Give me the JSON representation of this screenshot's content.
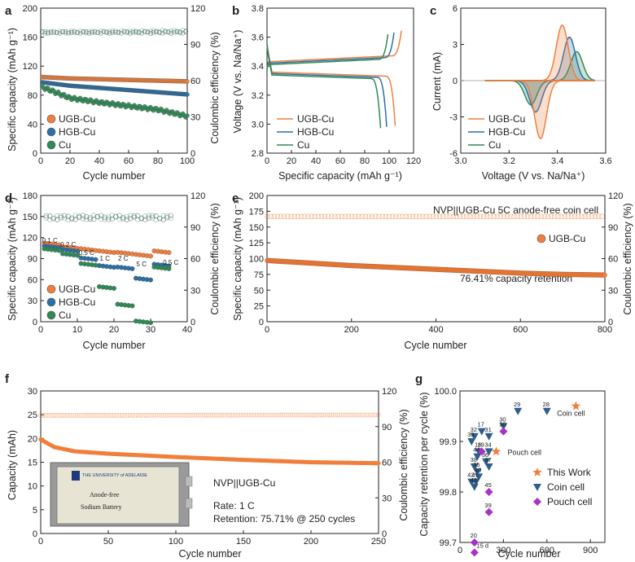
{
  "panels": {
    "a": {
      "label": "a",
      "ylabel": "Specific capacity (mAh g⁻¹)",
      "y2label": "Coulombic efficiency (%)",
      "xlabel": "Cycle number"
    },
    "b": {
      "label": "b",
      "ylabel": "Voltage (V vs. Na/Na⁺)",
      "xlabel": "Specific capacity (mAh g⁻¹)"
    },
    "c": {
      "label": "c",
      "ylabel": "Current (mA)",
      "xlabel": "Voltage (V vs. Na/Na⁺)"
    },
    "d": {
      "label": "d",
      "ylabel": "Specific capacity (mAh g⁻¹)",
      "y2label": "Coulombic efficiency (%)",
      "xlabel": "Cycle number"
    },
    "e": {
      "label": "e",
      "ylabel": "Specific capacity (mAh g⁻¹)",
      "y2label": "Coulombic efficiency (%)",
      "xlabel": "Cycle number",
      "title": "NVP||UGB-Cu 5C anode-free coin cell",
      "annotation": "76.41%  capacity retention"
    },
    "f": {
      "label": "f",
      "ylabel": "Capacity (mAh)",
      "y2label": "Coulombic efficiency (%)",
      "xlabel": "Cycle number",
      "cell": "NVP||UGB-Cu",
      "rate": "Rate: 1 C",
      "retention": "Retention: 75.71% @ 250 cycles",
      "photo_text": "Anode-free\nSodium Battery",
      "photo_logo": "THE UNIVERSITY of ADELAIDE"
    },
    "g": {
      "label": "g",
      "ylabel": "Capacity retention per cycle (%)",
      "xlabel": "Cycle number",
      "coin_cell_label": "Coin cell",
      "pouch_cell_label": "Pouch cell",
      "days_label": "15 d"
    }
  },
  "colors": {
    "UGB-Cu": "#f07f3c",
    "HGB-Cu": "#2c6fa3",
    "Cu": "#2f8a55",
    "this_work": "#f07f3c",
    "coin": "#2e5e8a",
    "pouch": "#a832c9"
  },
  "chart_data": [
    {
      "panel": "a",
      "type": "scatter",
      "xlim": [
        0,
        100
      ],
      "ylim": [
        0,
        200
      ],
      "y2lim": [
        0,
        120
      ],
      "xticks": [
        0,
        20,
        40,
        60,
        80,
        100
      ],
      "yticks": [
        0,
        40,
        80,
        120,
        160,
        200
      ],
      "y2ticks": [
        0,
        30,
        60,
        90,
        120
      ],
      "series": [
        {
          "name": "UGB-Cu",
          "capacity": [
            [
              0,
              105
            ],
            [
              20,
              103
            ],
            [
              40,
              102
            ],
            [
              60,
              101
            ],
            [
              80,
              100
            ],
            [
              100,
              99
            ]
          ],
          "ce": [
            [
              0,
              100
            ],
            [
              100,
              100
            ]
          ]
        },
        {
          "name": "HGB-Cu",
          "capacity": [
            [
              0,
              98
            ],
            [
              20,
              93
            ],
            [
              40,
              90
            ],
            [
              60,
              87
            ],
            [
              80,
              84
            ],
            [
              100,
              81
            ]
          ],
          "ce": [
            [
              0,
              100
            ],
            [
              100,
              100
            ]
          ]
        },
        {
          "name": "Cu",
          "capacity": [
            [
              0,
              92
            ],
            [
              20,
              76
            ],
            [
              40,
              70
            ],
            [
              60,
              65
            ],
            [
              80,
              60
            ],
            [
              100,
              51
            ]
          ],
          "ce": [
            [
              0,
              100
            ],
            [
              100,
              101
            ]
          ]
        }
      ]
    },
    {
      "panel": "b",
      "type": "line",
      "xlim": [
        0,
        120
      ],
      "ylim": [
        2.8,
        3.8
      ],
      "xticks": [
        0,
        20,
        40,
        60,
        80,
        100,
        120
      ],
      "yticks": [
        2.8,
        3.0,
        3.2,
        3.4,
        3.6,
        3.8
      ],
      "series": [
        {
          "name": "UGB-Cu",
          "charge_end": 110,
          "discharge_end": 105,
          "charge_plateau": 3.43,
          "discharge_plateau": 3.36
        },
        {
          "name": "HGB-Cu",
          "charge_end": 104,
          "discharge_end": 98,
          "charge_plateau": 3.42,
          "discharge_plateau": 3.35
        },
        {
          "name": "Cu",
          "charge_end": 99,
          "discharge_end": 93,
          "charge_plateau": 3.41,
          "discharge_plateau": 3.34
        }
      ]
    },
    {
      "panel": "c",
      "type": "line",
      "xlim": [
        3.0,
        3.6
      ],
      "ylim": [
        -6,
        6
      ],
      "xticks": [
        3.0,
        3.2,
        3.4,
        3.6
      ],
      "yticks": [
        -6,
        -3,
        0,
        3,
        6
      ],
      "series": [
        {
          "name": "UGB-Cu",
          "ox_peak": [
            3.42,
            4.6
          ],
          "red_peak": [
            3.33,
            -4.8
          ]
        },
        {
          "name": "HGB-Cu",
          "ox_peak": [
            3.45,
            3.6
          ],
          "red_peak": [
            3.31,
            -2.6
          ]
        },
        {
          "name": "Cu",
          "ox_peak": [
            3.48,
            2.4
          ],
          "red_peak": [
            3.29,
            -2.0
          ]
        }
      ]
    },
    {
      "panel": "d",
      "type": "scatter",
      "xlim": [
        0,
        40
      ],
      "ylim": [
        0,
        180
      ],
      "y2lim": [
        0,
        120
      ],
      "xticks": [
        0,
        10,
        20,
        30,
        40
      ],
      "yticks": [
        0,
        30,
        60,
        90,
        120,
        150,
        180
      ],
      "y2ticks": [
        0,
        30,
        60,
        90,
        120
      ],
      "rate_labels": [
        {
          "text": "0.1 C",
          "x": 1
        },
        {
          "text": "0.2 C",
          "x": 6
        },
        {
          "text": "0.5 C",
          "x": 11
        },
        {
          "text": "1 C",
          "x": 16
        },
        {
          "text": "2 C",
          "x": 21
        },
        {
          "text": "5 C",
          "x": 26
        },
        {
          "text": "0.5 C",
          "x": 34
        }
      ],
      "series": [
        {
          "name": "UGB-Cu",
          "steps": [
            112,
            107,
            104,
            101,
            99,
            96,
            101
          ]
        },
        {
          "name": "HGB-Cu",
          "steps": [
            108,
            103,
            91,
            80,
            78,
            62,
            82
          ]
        },
        {
          "name": "Cu",
          "steps": [
            104,
            97,
            83,
            50,
            25,
            1,
            78
          ]
        }
      ]
    },
    {
      "panel": "e",
      "type": "scatter",
      "xlim": [
        0,
        800
      ],
      "ylim": [
        0,
        200
      ],
      "y2lim": [
        0,
        120
      ],
      "xticks": [
        0,
        200,
        400,
        600,
        800
      ],
      "yticks": [
        0,
        25,
        50,
        75,
        100,
        125,
        150,
        175,
        200
      ],
      "y2ticks": [
        0,
        30,
        60,
        90,
        120
      ],
      "series": [
        {
          "name": "UGB-Cu",
          "capacity": [
            [
              0,
              97
            ],
            [
              100,
              93
            ],
            [
              200,
              89
            ],
            [
              300,
              86
            ],
            [
              400,
              83
            ],
            [
              500,
              80
            ],
            [
              600,
              77
            ],
            [
              700,
              75
            ],
            [
              800,
              74
            ]
          ],
          "ce": [
            [
              0,
              100
            ],
            [
              800,
              100
            ]
          ]
        }
      ]
    },
    {
      "panel": "f",
      "type": "line",
      "xlim": [
        0,
        250
      ],
      "ylim": [
        0,
        30
      ],
      "y2lim": [
        0,
        120
      ],
      "xticks": [
        0,
        50,
        100,
        150,
        200,
        250
      ],
      "yticks": [
        0,
        5,
        10,
        15,
        20,
        25,
        30
      ],
      "y2ticks": [
        0,
        30,
        60,
        90,
        120
      ],
      "series": [
        {
          "name": "NVP||UGB-Cu",
          "capacity": [
            [
              0,
              19.8
            ],
            [
              10,
              18.2
            ],
            [
              25,
              17.3
            ],
            [
              50,
              16.8
            ],
            [
              100,
              16.1
            ],
            [
              150,
              15.5
            ],
            [
              200,
              15.0
            ],
            [
              250,
              14.8
            ]
          ],
          "ce": [
            [
              0,
              99.5
            ],
            [
              250,
              99.8
            ]
          ]
        }
      ]
    },
    {
      "panel": "g",
      "type": "scatter",
      "xlim": [
        0,
        1000
      ],
      "ylim": [
        99.7,
        100.0
      ],
      "xticks": [
        0,
        300,
        600,
        900
      ],
      "yticks": [
        99.7,
        99.8,
        99.9,
        100.0
      ],
      "legend": [
        "This Work",
        "Coin cell",
        "Pouch cell"
      ],
      "series": [
        {
          "name": "This Work",
          "points": [
            {
              "x": 800,
              "y": 99.97
            },
            {
              "x": 250,
              "y": 99.88
            }
          ]
        },
        {
          "name": "Coin cell",
          "points": [
            {
              "x": 400,
              "y": 99.96,
              "label": "29"
            },
            {
              "x": 600,
              "y": 99.96,
              "label": "28"
            },
            {
              "x": 300,
              "y": 99.93,
              "label": "30"
            },
            {
              "x": 150,
              "y": 99.92,
              "label": "17"
            },
            {
              "x": 100,
              "y": 99.91,
              "label": "32"
            },
            {
              "x": 200,
              "y": 99.91,
              "label": "31"
            },
            {
              "x": 80,
              "y": 99.9,
              "label": "33"
            },
            {
              "x": 130,
              "y": 99.88,
              "label": "18"
            },
            {
              "x": 200,
              "y": 99.88,
              "label": "34"
            },
            {
              "x": 120,
              "y": 99.87,
              "label": "44"
            },
            {
              "x": 180,
              "y": 99.86,
              "label": "36"
            },
            {
              "x": 200,
              "y": 99.85,
              "label": "37"
            },
            {
              "x": 100,
              "y": 99.85,
              "label": "38"
            },
            {
              "x": 120,
              "y": 99.84,
              "label": "35"
            },
            {
              "x": 130,
              "y": 99.83,
              "label": "40"
            },
            {
              "x": 110,
              "y": 99.82,
              "label": "41"
            },
            {
              "x": 80,
              "y": 99.82,
              "label": "42"
            },
            {
              "x": 100,
              "y": 99.81,
              "label": "43"
            }
          ]
        },
        {
          "name": "Pouch cell",
          "points": [
            {
              "x": 300,
              "y": 99.92,
              "label": "30"
            },
            {
              "x": 150,
              "y": 99.88,
              "label": "19"
            },
            {
              "x": 200,
              "y": 99.8,
              "label": "45"
            },
            {
              "x": 200,
              "y": 99.76,
              "label": "39"
            },
            {
              "x": 100,
              "y": 99.7,
              "label": "20"
            },
            {
              "x": 100,
              "y": 99.68,
              "label": "15 d"
            }
          ]
        }
      ]
    }
  ]
}
